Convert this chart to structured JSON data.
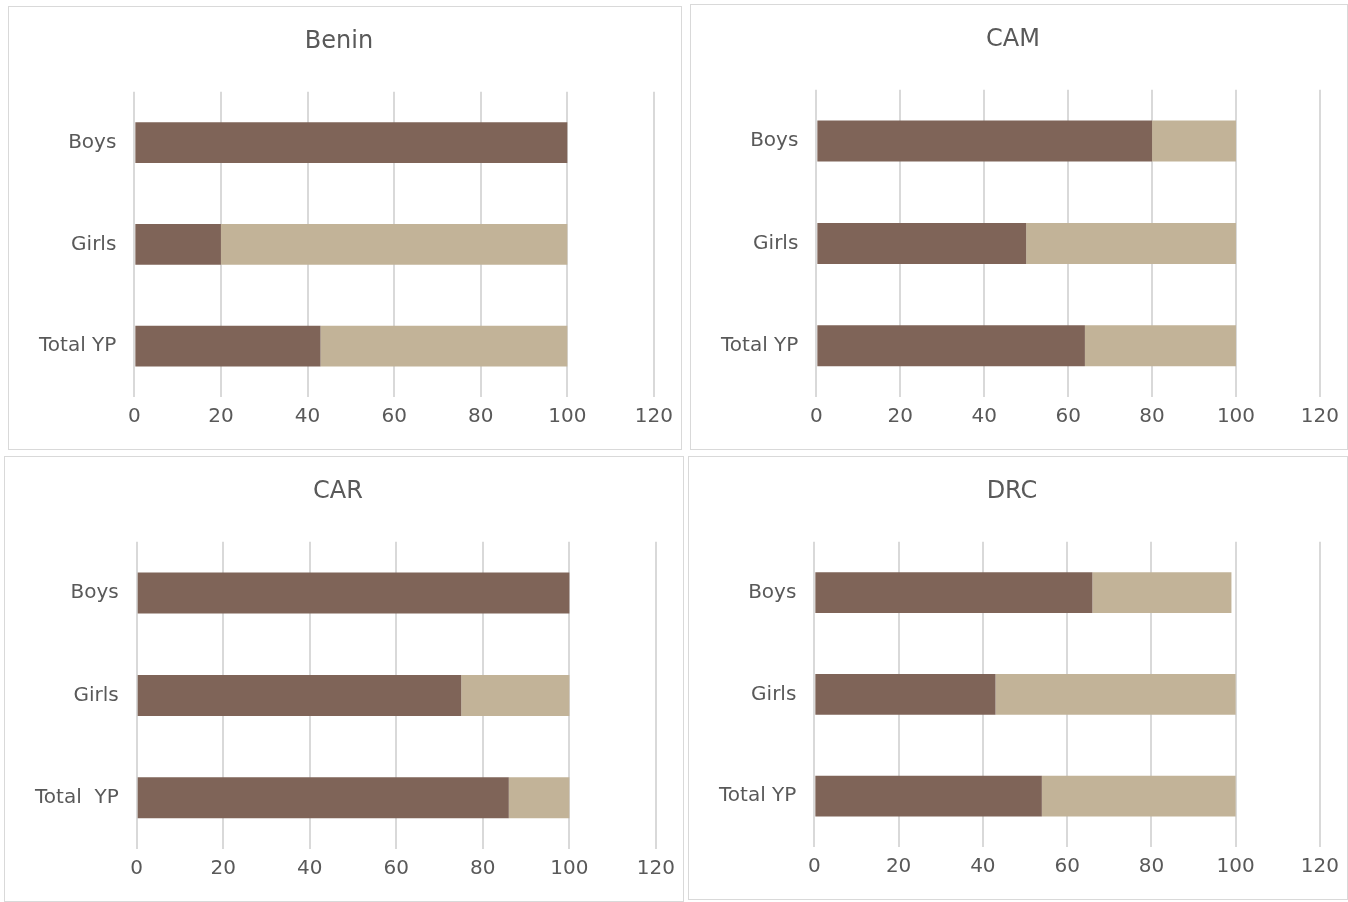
{
  "chart_data": [
    {
      "type": "bar",
      "title": "Benin",
      "orientation": "horizontal",
      "stacked": true,
      "categories": [
        "Boys",
        "Girls",
        "Total YP"
      ],
      "series": [
        {
          "color": "#7f6458",
          "values": [
            100,
            20,
            43
          ]
        },
        {
          "color": "#c2b398",
          "values": [
            0,
            80,
            57
          ]
        }
      ],
      "xlim": [
        0,
        120
      ],
      "xticks": [
        0,
        20,
        40,
        60,
        80,
        100,
        120
      ],
      "grid": "x",
      "legend": false
    },
    {
      "type": "bar",
      "title": "CAM",
      "orientation": "horizontal",
      "stacked": true,
      "categories": [
        "Boys",
        "Girls",
        "Total YP"
      ],
      "series": [
        {
          "color": "#7f6458",
          "values": [
            80,
            50,
            64
          ]
        },
        {
          "color": "#c2b398",
          "values": [
            20,
            50,
            36
          ]
        }
      ],
      "xlim": [
        0,
        120
      ],
      "xticks": [
        0,
        20,
        40,
        60,
        80,
        100,
        120
      ],
      "grid": "x",
      "legend": false
    },
    {
      "type": "bar",
      "title": "CAR",
      "orientation": "horizontal",
      "stacked": true,
      "categories": [
        "Boys",
        "Girls",
        "Total  YP"
      ],
      "series": [
        {
          "color": "#7f6458",
          "values": [
            100,
            75,
            86
          ]
        },
        {
          "color": "#c2b398",
          "values": [
            0,
            25,
            14
          ]
        }
      ],
      "xlim": [
        0,
        120
      ],
      "xticks": [
        0,
        20,
        40,
        60,
        80,
        100,
        120
      ],
      "grid": "x",
      "legend": false
    },
    {
      "type": "bar",
      "title": "DRC",
      "orientation": "horizontal",
      "stacked": true,
      "categories": [
        "Boys",
        "Girls",
        "Total YP"
      ],
      "series": [
        {
          "color": "#7f6458",
          "values": [
            66,
            43,
            54
          ]
        },
        {
          "color": "#c2b398",
          "values": [
            33,
            57,
            46
          ]
        }
      ],
      "xlim": [
        0,
        120
      ],
      "xticks": [
        0,
        20,
        40,
        60,
        80,
        100,
        120
      ],
      "grid": "x",
      "legend": false
    }
  ]
}
